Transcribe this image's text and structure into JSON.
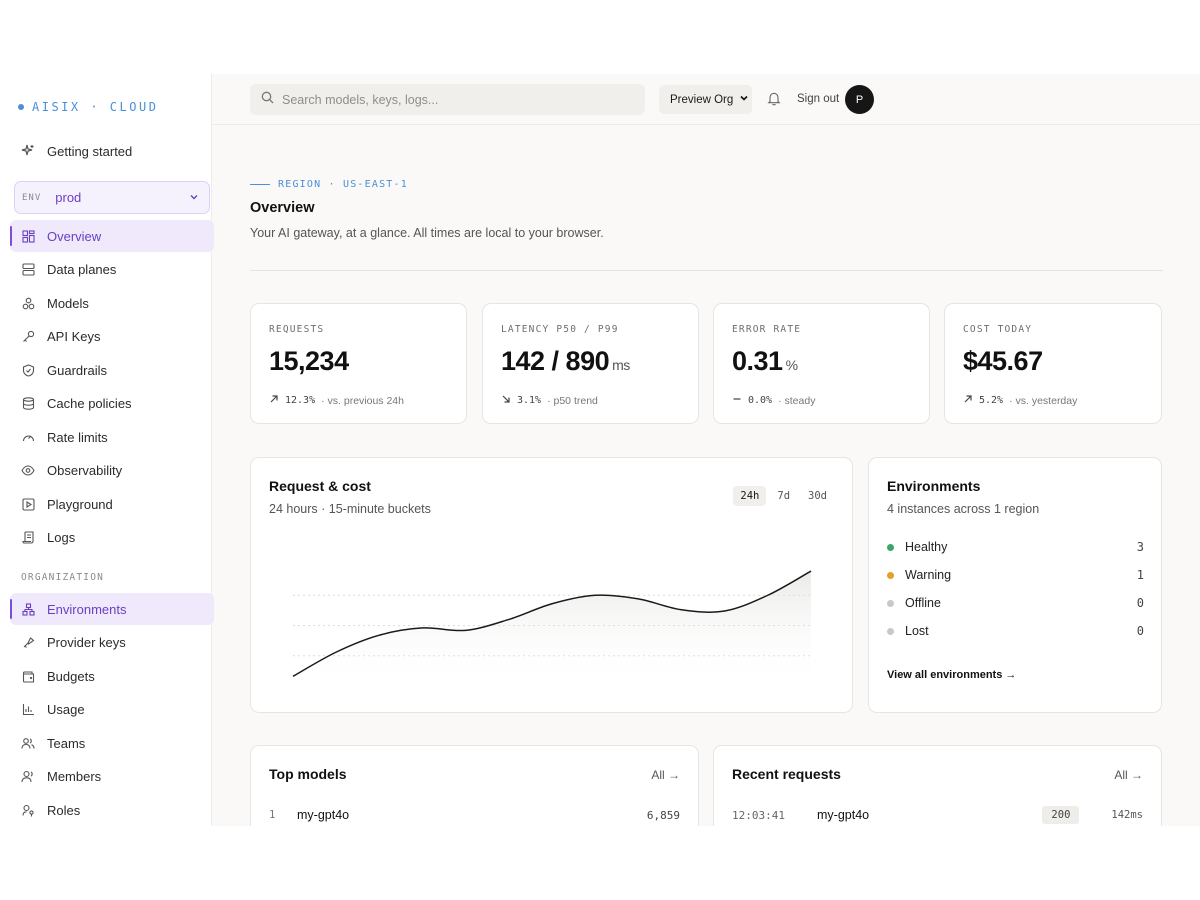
{
  "brand": {
    "name": "AISIX · CLOUD"
  },
  "sidebar": {
    "getting_started": "Getting started",
    "env": {
      "tag": "ENV",
      "value": "prod"
    },
    "items": [
      {
        "label": "Overview",
        "icon": "grid-icon",
        "active": true
      },
      {
        "label": "Data planes",
        "icon": "server-icon"
      },
      {
        "label": "Models",
        "icon": "boxes-icon"
      },
      {
        "label": "API Keys",
        "icon": "key-icon"
      },
      {
        "label": "Guardrails",
        "icon": "shield-icon"
      },
      {
        "label": "Cache policies",
        "icon": "database-icon"
      },
      {
        "label": "Rate limits",
        "icon": "gauge-icon"
      },
      {
        "label": "Observability",
        "icon": "eye-icon"
      },
      {
        "label": "Playground",
        "icon": "play-icon"
      },
      {
        "label": "Logs",
        "icon": "scroll-icon"
      }
    ],
    "org_section": "ORGANIZATION",
    "org_items": [
      {
        "label": "Environments",
        "icon": "network-icon",
        "active": true
      },
      {
        "label": "Provider keys",
        "icon": "key-round-icon"
      },
      {
        "label": "Budgets",
        "icon": "wallet-icon"
      },
      {
        "label": "Usage",
        "icon": "bar-chart-icon"
      },
      {
        "label": "Teams",
        "icon": "users-icon"
      },
      {
        "label": "Members",
        "icon": "user-group-icon"
      },
      {
        "label": "Roles",
        "icon": "user-key-icon"
      }
    ]
  },
  "topbar": {
    "search_placeholder": "Search models, keys, logs...",
    "org": "Preview Org",
    "sign_out": "Sign out",
    "avatar_initial": "P"
  },
  "header": {
    "eyebrow": "REGION · US-EAST-1",
    "title": "Overview",
    "subtitle": "Your AI gateway, at a glance. All times are local to your browser."
  },
  "stats": [
    {
      "label": "REQUESTS",
      "value": "15,234",
      "unit": "",
      "delta_pct": "12.3%",
      "delta_text": "· vs. previous 24h",
      "trend": "up"
    },
    {
      "label": "LATENCY P50 / P99",
      "value": "142 / 890",
      "unit": "ms",
      "delta_pct": "3.1%",
      "delta_text": "· p50 trend",
      "trend": "down"
    },
    {
      "label": "ERROR RATE",
      "value": "0.31",
      "unit": "%",
      "delta_pct": "0.0%",
      "delta_text": "· steady",
      "trend": "flat"
    },
    {
      "label": "COST TODAY",
      "value": "$45.67",
      "unit": "",
      "delta_pct": "5.2%",
      "delta_text": "· vs. yesterday",
      "trend": "up"
    }
  ],
  "request_cost": {
    "title": "Request & cost",
    "subtitle": "24 hours · 15-minute buckets",
    "ranges": [
      "24h",
      "7d",
      "30d"
    ],
    "active_range": "24h"
  },
  "environments": {
    "title": "Environments",
    "subtitle": "4 instances across 1 region",
    "rows": [
      {
        "label": "Healthy",
        "count": "3",
        "color": "#3aa66a"
      },
      {
        "label": "Warning",
        "count": "1",
        "color": "#e0a02a"
      },
      {
        "label": "Offline",
        "count": "0",
        "color": "#c8c8c8"
      },
      {
        "label": "Lost",
        "count": "0",
        "color": "#c8c8c8"
      }
    ],
    "link": "View all environments →"
  },
  "top_models": {
    "title": "Top models",
    "all_label": "All →",
    "rows": [
      {
        "rank": "1",
        "name": "my-gpt4o",
        "count": "6,859"
      }
    ]
  },
  "recent_requests": {
    "title": "Recent requests",
    "all_label": "All →",
    "rows": [
      {
        "time": "12:03:41",
        "model": "my-gpt4o",
        "status": "200",
        "latency": "142ms"
      }
    ]
  },
  "chart_data": {
    "type": "area",
    "title": "Request & cost",
    "subtitle": "24 hours · 15-minute buckets",
    "x": [
      0,
      1,
      2,
      3,
      4,
      5,
      6,
      7,
      8,
      9,
      10,
      11,
      12
    ],
    "series": [
      {
        "values": [
          0.08,
          0.28,
          0.42,
          0.48,
          0.46,
          0.55,
          0.68,
          0.75,
          0.72,
          0.63,
          0.62,
          0.75,
          0.95
        ]
      }
    ],
    "ylim": [
      0,
      1
    ],
    "grid": true
  }
}
